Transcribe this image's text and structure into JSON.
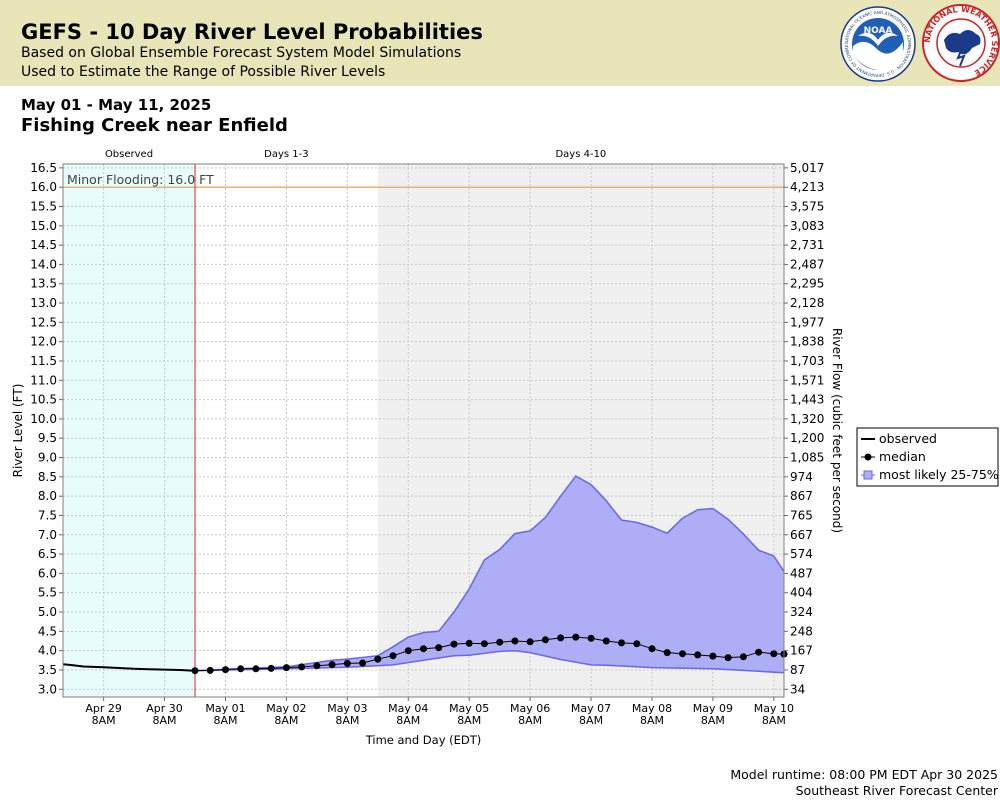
{
  "header": {
    "title": "GEFS - 10 Day River Level Probabilities",
    "subtitle_1": "Based on Global Ensemble Forecast System Model Simulations",
    "subtitle_2": "Used to Estimate the Range of Possible River Levels",
    "noaa_logo_text": "NOAA",
    "noaa_logo_ring": "NATIONAL OCEANIC AND ATMOSPHERIC ADMINISTRATION · U.S. DEPARTMENT OF COMMERCE",
    "nws_logo_ring": "NATIONAL WEATHER SERVICE"
  },
  "date_range": "May 01 - May 11, 2025",
  "station": "Fishing Creek near Enfield",
  "footer": {
    "runtime": "Model runtime: 08:00 PM EDT Apr 30 2025",
    "center": "Southeast River Forecast Center"
  },
  "colors": {
    "observed_bg": "#e8fcfc",
    "days_4_10_bg": "#f0f0f0",
    "band_fill": "#aeaef6",
    "band_stroke": "#6666ee",
    "flood_line": "#e0a050",
    "forecast_start_line": "#dd2222"
  },
  "chart_data": {
    "type": "line",
    "xlabel": "Time and Day (EDT)",
    "ylabel": "River Level (FT)",
    "y2label": "River Flow (cubic feet per second)",
    "ylim": [
      2.8,
      16.6
    ],
    "xlim": [
      "2025-04-28 16:00",
      "2025-05-10 12:00"
    ],
    "yticks": [
      3.0,
      3.5,
      4.0,
      4.5,
      5.0,
      5.5,
      6.0,
      6.5,
      7.0,
      7.5,
      8.0,
      8.5,
      9.0,
      9.5,
      10.0,
      10.5,
      11.0,
      11.5,
      12.0,
      12.5,
      13.0,
      13.5,
      14.0,
      14.5,
      15.0,
      15.5,
      16.0,
      16.5
    ],
    "y2ticks": [
      {
        "stage": 3.0,
        "flow": "34"
      },
      {
        "stage": 3.5,
        "flow": "87"
      },
      {
        "stage": 4.0,
        "flow": "167"
      },
      {
        "stage": 4.5,
        "flow": "248"
      },
      {
        "stage": 5.0,
        "flow": "324"
      },
      {
        "stage": 5.5,
        "flow": "404"
      },
      {
        "stage": 6.0,
        "flow": "487"
      },
      {
        "stage": 6.5,
        "flow": "574"
      },
      {
        "stage": 7.0,
        "flow": "667"
      },
      {
        "stage": 7.5,
        "flow": "765"
      },
      {
        "stage": 8.0,
        "flow": "867"
      },
      {
        "stage": 8.5,
        "flow": "974"
      },
      {
        "stage": 9.0,
        "flow": "1,085"
      },
      {
        "stage": 9.5,
        "flow": "1,200"
      },
      {
        "stage": 10.0,
        "flow": "1,320"
      },
      {
        "stage": 10.5,
        "flow": "1,443"
      },
      {
        "stage": 11.0,
        "flow": "1,571"
      },
      {
        "stage": 11.5,
        "flow": "1,703"
      },
      {
        "stage": 12.0,
        "flow": "1,838"
      },
      {
        "stage": 12.5,
        "flow": "1,977"
      },
      {
        "stage": 13.0,
        "flow": "2,128"
      },
      {
        "stage": 13.5,
        "flow": "2,295"
      },
      {
        "stage": 14.0,
        "flow": "2,487"
      },
      {
        "stage": 14.5,
        "flow": "2,731"
      },
      {
        "stage": 15.0,
        "flow": "3,083"
      },
      {
        "stage": 15.5,
        "flow": "3,575"
      },
      {
        "stage": 16.0,
        "flow": "4,213"
      },
      {
        "stage": 16.5,
        "flow": "5,017"
      }
    ],
    "xticks": [
      {
        "t": "2025-04-29 08:00",
        "day": "Apr 29",
        "time": "8AM"
      },
      {
        "t": "2025-04-30 08:00",
        "day": "Apr 30",
        "time": "8AM"
      },
      {
        "t": "2025-05-01 08:00",
        "day": "May 01",
        "time": "8AM"
      },
      {
        "t": "2025-05-02 08:00",
        "day": "May 02",
        "time": "8AM"
      },
      {
        "t": "2025-05-03 08:00",
        "day": "May 03",
        "time": "8AM"
      },
      {
        "t": "2025-05-04 08:00",
        "day": "May 04",
        "time": "8AM"
      },
      {
        "t": "2025-05-05 08:00",
        "day": "May 05",
        "time": "8AM"
      },
      {
        "t": "2025-05-06 08:00",
        "day": "May 06",
        "time": "8AM"
      },
      {
        "t": "2025-05-07 08:00",
        "day": "May 07",
        "time": "8AM"
      },
      {
        "t": "2025-05-08 08:00",
        "day": "May 08",
        "time": "8AM"
      },
      {
        "t": "2025-05-09 08:00",
        "day": "May 09",
        "time": "8AM"
      },
      {
        "t": "2025-05-10 08:00",
        "day": "May 10",
        "time": "8AM"
      }
    ],
    "regions": [
      {
        "label": "Observed",
        "start": "2025-04-28 16:00",
        "end": "2025-04-30 20:00"
      },
      {
        "label": "Days 1-3",
        "start": "2025-04-30 20:00",
        "end": "2025-05-03 20:00"
      },
      {
        "label": "Days 4-10",
        "start": "2025-05-03 20:00",
        "end": "2025-05-10 12:00"
      }
    ],
    "flood_stage": {
      "label": "Minor Flooding: 16.0 FT",
      "value": 16.0
    },
    "forecast_start": "2025-04-30 20:00",
    "series": [
      {
        "name": "observed",
        "points": [
          [
            "2025-04-28 16:00",
            3.65
          ],
          [
            "2025-04-28 20:00",
            3.62
          ],
          [
            "2025-04-29 00:00",
            3.59
          ],
          [
            "2025-04-29 08:00",
            3.57
          ],
          [
            "2025-04-29 14:00",
            3.55
          ],
          [
            "2025-04-29 20:00",
            3.53
          ],
          [
            "2025-04-30 02:00",
            3.52
          ],
          [
            "2025-04-30 08:00",
            3.51
          ],
          [
            "2025-04-30 14:00",
            3.5
          ],
          [
            "2025-04-30 20:00",
            3.48
          ]
        ]
      },
      {
        "name": "median",
        "points": [
          [
            "2025-04-30 20:00",
            3.48
          ],
          [
            "2025-05-01 02:00",
            3.49
          ],
          [
            "2025-05-01 08:00",
            3.51
          ],
          [
            "2025-05-01 14:00",
            3.53
          ],
          [
            "2025-05-01 20:00",
            3.53
          ],
          [
            "2025-05-02 02:00",
            3.54
          ],
          [
            "2025-05-02 08:00",
            3.56
          ],
          [
            "2025-05-02 14:00",
            3.58
          ],
          [
            "2025-05-02 20:00",
            3.61
          ],
          [
            "2025-05-03 02:00",
            3.64
          ],
          [
            "2025-05-03 08:00",
            3.67
          ],
          [
            "2025-05-03 14:00",
            3.68
          ],
          [
            "2025-05-03 20:00",
            3.78
          ],
          [
            "2025-05-04 02:00",
            3.87
          ],
          [
            "2025-05-04 08:00",
            4.0
          ],
          [
            "2025-05-04 14:00",
            4.05
          ],
          [
            "2025-05-04 20:00",
            4.08
          ],
          [
            "2025-05-05 02:00",
            4.17
          ],
          [
            "2025-05-05 08:00",
            4.19
          ],
          [
            "2025-05-05 14:00",
            4.18
          ],
          [
            "2025-05-05 20:00",
            4.22
          ],
          [
            "2025-05-06 02:00",
            4.25
          ],
          [
            "2025-05-06 08:00",
            4.23
          ],
          [
            "2025-05-06 14:00",
            4.28
          ],
          [
            "2025-05-06 20:00",
            4.33
          ],
          [
            "2025-05-07 02:00",
            4.35
          ],
          [
            "2025-05-07 08:00",
            4.32
          ],
          [
            "2025-05-07 14:00",
            4.25
          ],
          [
            "2025-05-07 20:00",
            4.2
          ],
          [
            "2025-05-08 02:00",
            4.18
          ],
          [
            "2025-05-08 08:00",
            4.05
          ],
          [
            "2025-05-08 14:00",
            3.95
          ],
          [
            "2025-05-08 20:00",
            3.92
          ],
          [
            "2025-05-09 02:00",
            3.89
          ],
          [
            "2025-05-09 08:00",
            3.86
          ],
          [
            "2025-05-09 14:00",
            3.82
          ],
          [
            "2025-05-09 20:00",
            3.84
          ],
          [
            "2025-05-10 02:00",
            3.96
          ],
          [
            "2025-05-10 08:00",
            3.92
          ],
          [
            "2025-05-10 12:00",
            3.91
          ]
        ]
      },
      {
        "name": "most likely 25-75%",
        "low": [
          [
            "2025-04-30 20:00",
            3.48
          ],
          [
            "2025-05-01 08:00",
            3.5
          ],
          [
            "2025-05-02 08:00",
            3.53
          ],
          [
            "2025-05-03 08:00",
            3.57
          ],
          [
            "2025-05-04 02:00",
            3.63
          ],
          [
            "2025-05-04 14:00",
            3.75
          ],
          [
            "2025-05-05 02:00",
            3.87
          ],
          [
            "2025-05-05 08:00",
            3.88
          ],
          [
            "2025-05-05 20:00",
            3.98
          ],
          [
            "2025-05-06 02:00",
            4.0
          ],
          [
            "2025-05-06 08:00",
            3.95
          ],
          [
            "2025-05-06 20:00",
            3.77
          ],
          [
            "2025-05-07 08:00",
            3.63
          ],
          [
            "2025-05-07 14:00",
            3.62
          ],
          [
            "2025-05-08 08:00",
            3.56
          ],
          [
            "2025-05-09 08:00",
            3.53
          ],
          [
            "2025-05-09 20:00",
            3.49
          ],
          [
            "2025-05-10 12:00",
            3.43
          ]
        ],
        "high": [
          [
            "2025-04-30 20:00",
            3.48
          ],
          [
            "2025-05-01 08:00",
            3.52
          ],
          [
            "2025-05-02 08:00",
            3.58
          ],
          [
            "2025-05-03 02:00",
            3.75
          ],
          [
            "2025-05-03 08:00",
            3.78
          ],
          [
            "2025-05-03 20:00",
            3.87
          ],
          [
            "2025-05-04 02:00",
            4.1
          ],
          [
            "2025-05-04 08:00",
            4.35
          ],
          [
            "2025-05-04 14:00",
            4.47
          ],
          [
            "2025-05-04 20:00",
            4.5
          ],
          [
            "2025-05-05 02:00",
            5.0
          ],
          [
            "2025-05-05 08:00",
            5.6
          ],
          [
            "2025-05-05 14:00",
            6.35
          ],
          [
            "2025-05-05 20:00",
            6.62
          ],
          [
            "2025-05-06 02:00",
            7.03
          ],
          [
            "2025-05-06 08:00",
            7.1
          ],
          [
            "2025-05-06 14:00",
            7.45
          ],
          [
            "2025-05-06 20:00",
            8.0
          ],
          [
            "2025-05-07 02:00",
            8.52
          ],
          [
            "2025-05-07 08:00",
            8.3
          ],
          [
            "2025-05-07 14:00",
            7.88
          ],
          [
            "2025-05-07 20:00",
            7.38
          ],
          [
            "2025-05-08 02:00",
            7.32
          ],
          [
            "2025-05-08 08:00",
            7.2
          ],
          [
            "2025-05-08 14:00",
            7.04
          ],
          [
            "2025-05-08 20:00",
            7.43
          ],
          [
            "2025-05-09 02:00",
            7.65
          ],
          [
            "2025-05-09 08:00",
            7.68
          ],
          [
            "2025-05-09 14:00",
            7.4
          ],
          [
            "2025-05-09 20:00",
            7.02
          ],
          [
            "2025-05-10 02:00",
            6.6
          ],
          [
            "2025-05-10 08:00",
            6.45
          ],
          [
            "2025-05-10 12:00",
            6.05
          ]
        ]
      }
    ],
    "legend": {
      "position": "right",
      "items": [
        "observed",
        "median",
        "most likely 25-75%"
      ]
    },
    "grid": true
  }
}
